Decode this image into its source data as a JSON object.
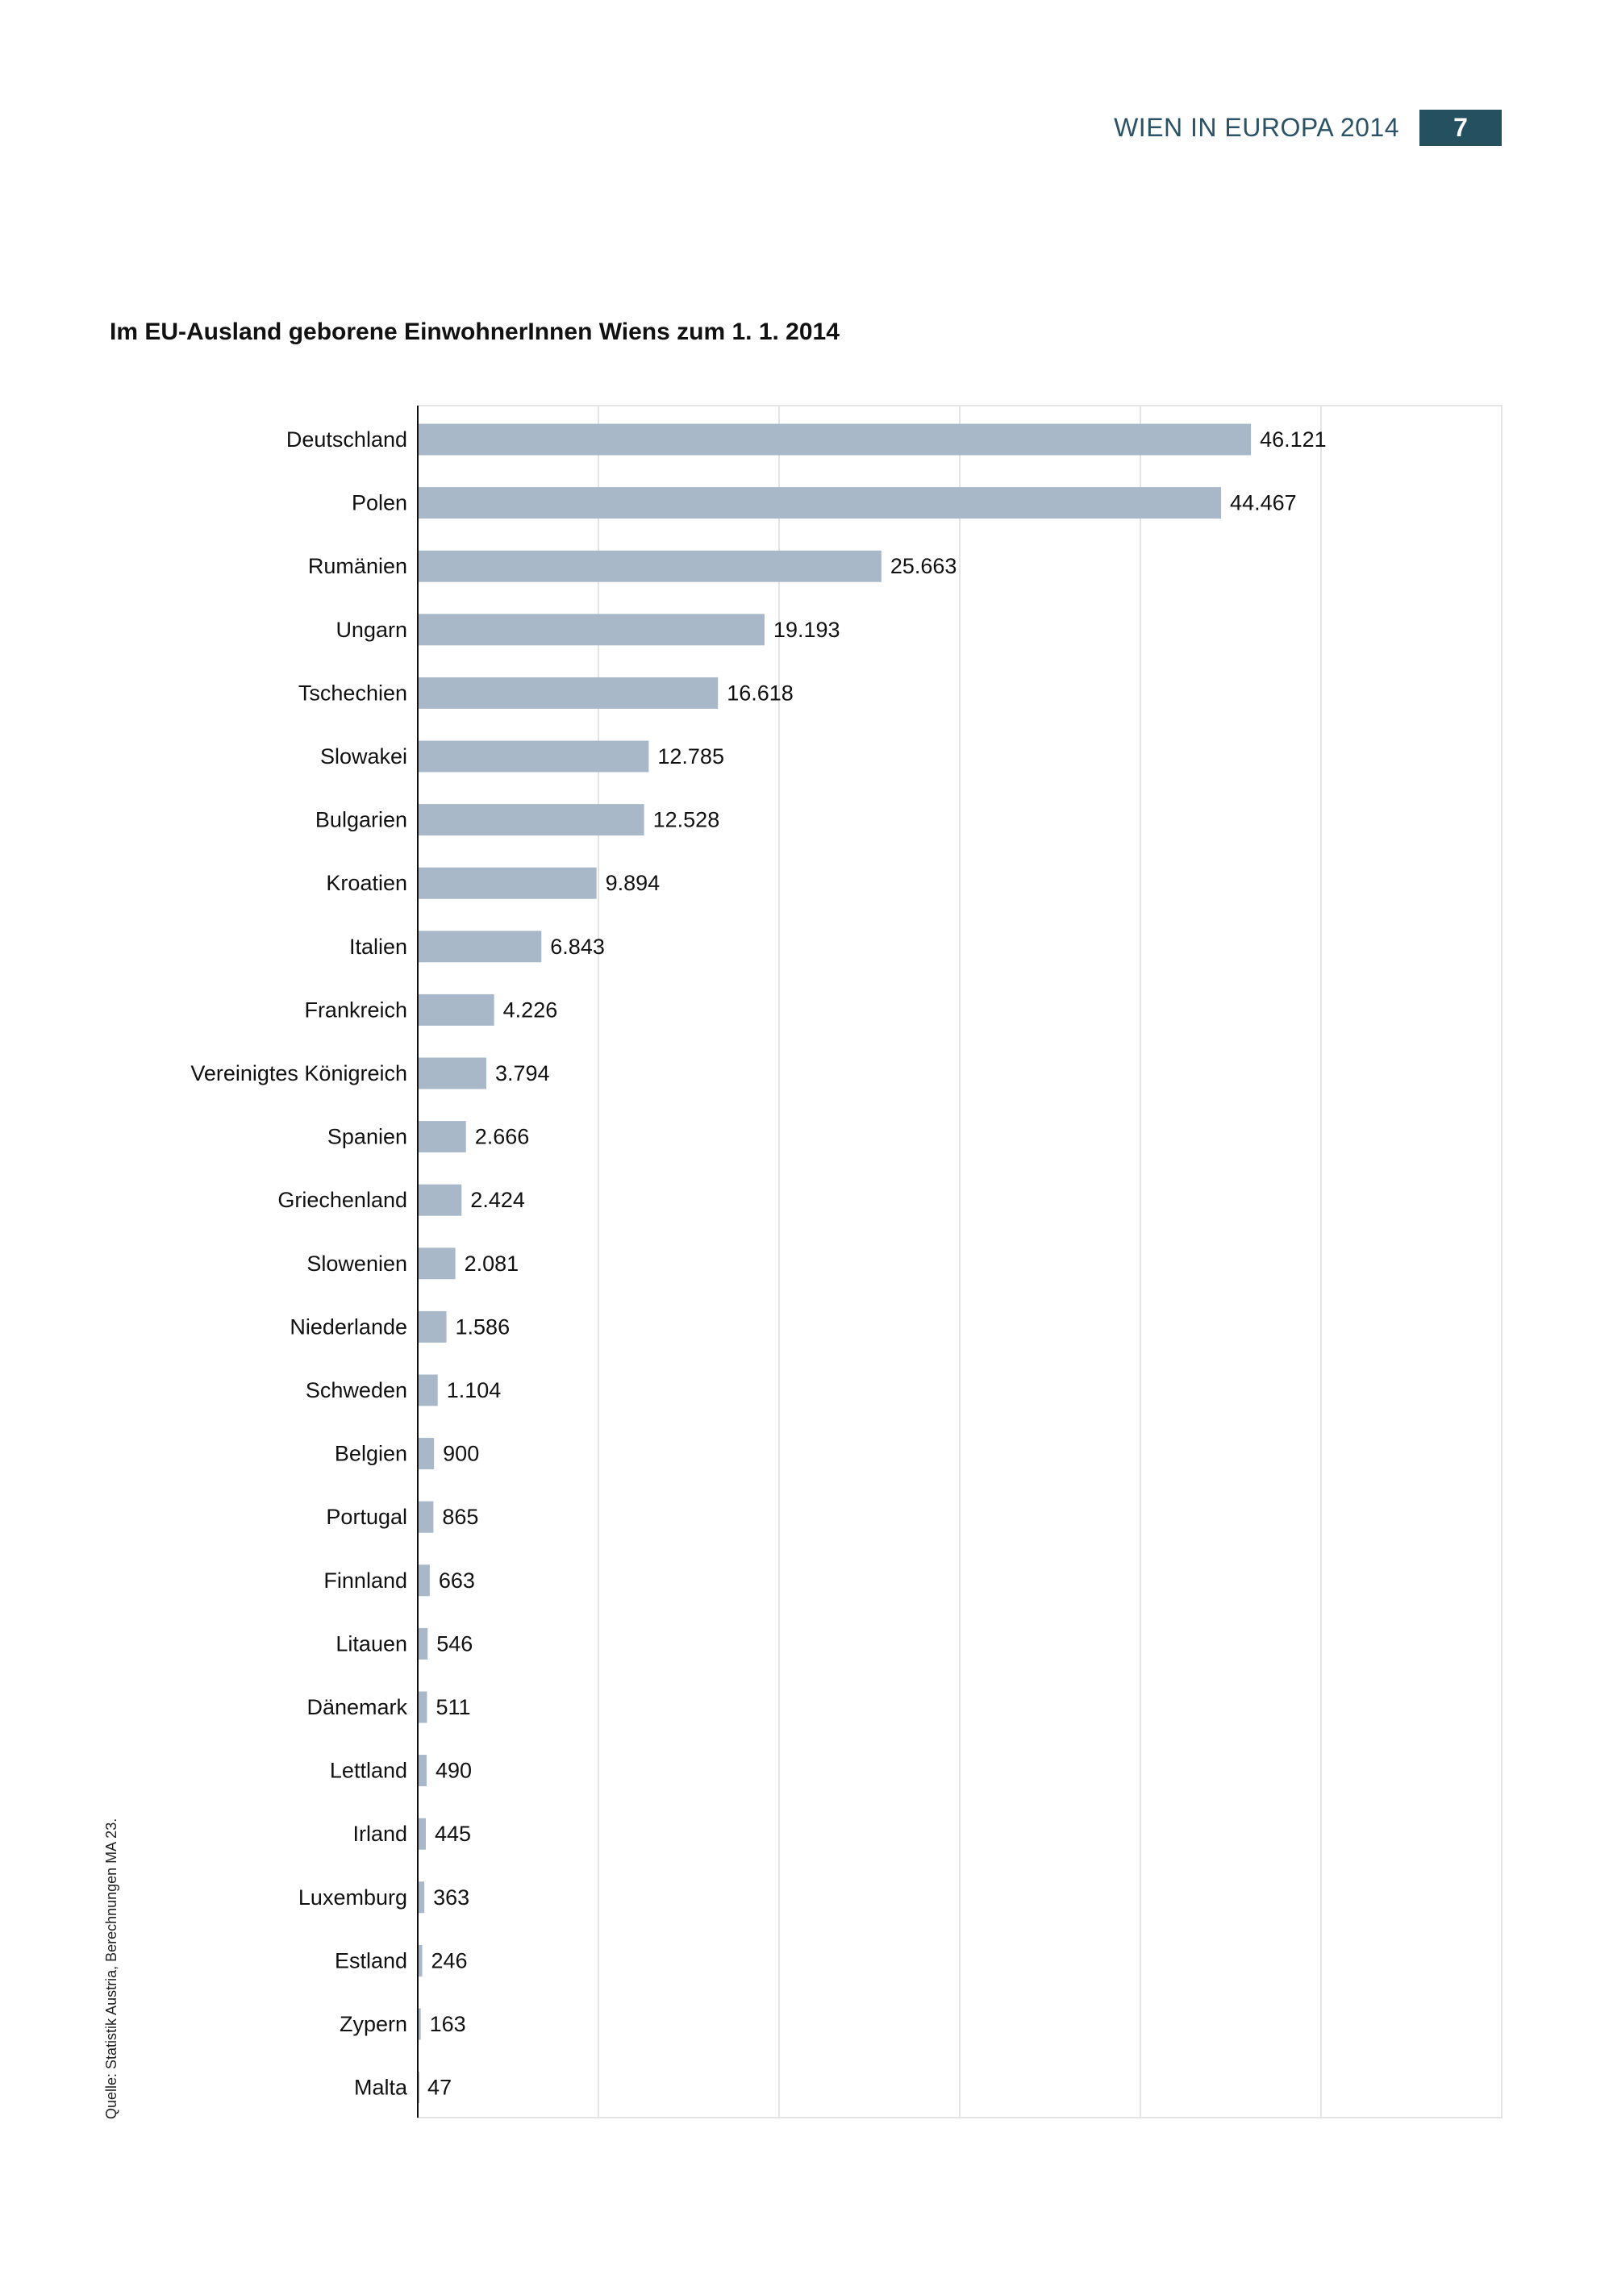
{
  "header": {
    "running_title": "WIEN IN EUROPA 2014",
    "page_number": "7"
  },
  "source_note": "Quelle: Statistik Austria, Berechnungen MA 23.",
  "colors": {
    "bar": "#a8b8c8",
    "header": "#25505f",
    "grid": "#e4e4e4"
  },
  "chart_data": {
    "type": "bar",
    "orientation": "horizontal",
    "title": "Im EU-Ausland geborene EinwohnerInnen Wiens zum 1. 1. 2014",
    "xlabel": "",
    "ylabel": "",
    "xlim": [
      0,
      60000
    ],
    "grid": true,
    "grid_step": 10000,
    "categories": [
      "Deutschland",
      "Polen",
      "Rumänien",
      "Ungarn",
      "Tschechien",
      "Slowakei",
      "Bulgarien",
      "Kroatien",
      "Italien",
      "Frankreich",
      "Vereinigtes Königreich",
      "Spanien",
      "Griechenland",
      "Slowenien",
      "Niederlande",
      "Schweden",
      "Belgien",
      "Portugal",
      "Finnland",
      "Litauen",
      "Dänemark",
      "Lettland",
      "Irland",
      "Luxemburg",
      "Estland",
      "Zypern",
      "Malta"
    ],
    "values": [
      46121,
      44467,
      25663,
      19193,
      16618,
      12785,
      12528,
      9894,
      6843,
      4226,
      3794,
      2666,
      2424,
      2081,
      1586,
      1104,
      900,
      865,
      663,
      546,
      511,
      490,
      445,
      363,
      246,
      163,
      47
    ],
    "value_labels": [
      "46.121",
      "44.467",
      "25.663",
      "19.193",
      "16.618",
      "12.785",
      "12.528",
      "9.894",
      "6.843",
      "4.226",
      "3.794",
      "2.666",
      "2.424",
      "2.081",
      "1.586",
      "1.104",
      "900",
      "865",
      "663",
      "546",
      "511",
      "490",
      "445",
      "363",
      "246",
      "163",
      "47"
    ]
  }
}
